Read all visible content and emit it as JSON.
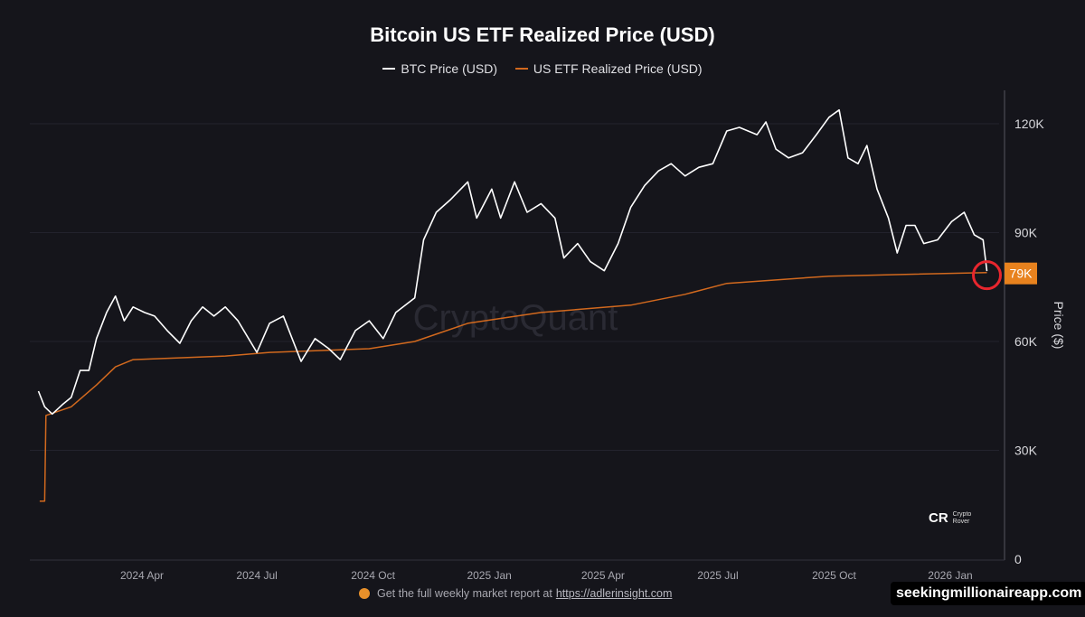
{
  "chart_data": {
    "type": "line",
    "title": "Bitcoin US ETF Realized Price (USD)",
    "ylabel": "Price ($)",
    "ylim": [
      0,
      130000
    ],
    "y_ticks": [
      0,
      30000,
      60000,
      90000,
      120000
    ],
    "y_tick_labels": [
      "0",
      "30K",
      "60K",
      "90K",
      "120K"
    ],
    "x_ticks": [
      "2024-04-01",
      "2024-07-01",
      "2024-10-01",
      "2025-01-01",
      "2025-04-01",
      "2025-07-01",
      "2025-10-01",
      "2026-01-01"
    ],
    "x_tick_labels": [
      "2024 Apr",
      "2024 Jul",
      "2024 Oct",
      "2025 Jan",
      "2025 Apr",
      "2025 Jul",
      "2025 Oct",
      "2026 Jan"
    ],
    "grid": true,
    "legend": "top-center",
    "y_axis_side": "right",
    "watermark": "CryptoQuant",
    "annotation": {
      "label": "79K",
      "value": 79000,
      "date": "2026-01-30",
      "badge_color": "#e8821e",
      "circle_color": "#e8262e"
    },
    "series": [
      {
        "name": "BTC Price (USD)",
        "color": "#ffffff",
        "points": [
          [
            "2024-01-10",
            46300
          ],
          [
            "2024-01-15",
            42000
          ],
          [
            "2024-01-21",
            40000
          ],
          [
            "2024-01-29",
            42600
          ],
          [
            "2024-02-05",
            44600
          ],
          [
            "2024-02-12",
            52000
          ],
          [
            "2024-02-19",
            52000
          ],
          [
            "2024-02-25",
            60800
          ],
          [
            "2024-03-04",
            68000
          ],
          [
            "2024-03-11",
            72500
          ],
          [
            "2024-03-18",
            65700
          ],
          [
            "2024-03-25",
            69500
          ],
          [
            "2024-04-03",
            68000
          ],
          [
            "2024-04-11",
            67000
          ],
          [
            "2024-04-21",
            63000
          ],
          [
            "2024-05-01",
            59500
          ],
          [
            "2024-05-10",
            65700
          ],
          [
            "2024-05-19",
            69500
          ],
          [
            "2024-05-28",
            67000
          ],
          [
            "2024-06-06",
            69500
          ],
          [
            "2024-06-16",
            65700
          ],
          [
            "2024-07-01",
            57000
          ],
          [
            "2024-07-11",
            65000
          ],
          [
            "2024-07-22",
            67000
          ],
          [
            "2024-08-05",
            54500
          ],
          [
            "2024-08-16",
            60800
          ],
          [
            "2024-08-27",
            58000
          ],
          [
            "2024-09-05",
            55000
          ],
          [
            "2024-09-17",
            63000
          ],
          [
            "2024-09-28",
            65700
          ],
          [
            "2024-10-09",
            60800
          ],
          [
            "2024-10-19",
            68000
          ],
          [
            "2024-11-03",
            72000
          ],
          [
            "2024-11-10",
            88000
          ],
          [
            "2024-11-20",
            95600
          ],
          [
            "2024-12-01",
            99000
          ],
          [
            "2024-12-15",
            104000
          ],
          [
            "2024-12-22",
            94000
          ],
          [
            "2025-01-03",
            102000
          ],
          [
            "2025-01-10",
            94000
          ],
          [
            "2025-01-21",
            104000
          ],
          [
            "2025-01-31",
            95600
          ],
          [
            "2025-02-11",
            98000
          ],
          [
            "2025-02-22",
            94000
          ],
          [
            "2025-03-01",
            83000
          ],
          [
            "2025-03-12",
            87000
          ],
          [
            "2025-03-22",
            82000
          ],
          [
            "2025-04-02",
            79500
          ],
          [
            "2025-04-13",
            87000
          ],
          [
            "2025-04-23",
            97000
          ],
          [
            "2025-05-04",
            103000
          ],
          [
            "2025-05-15",
            107000
          ],
          [
            "2025-05-25",
            109000
          ],
          [
            "2025-06-05",
            105600
          ],
          [
            "2025-06-16",
            108000
          ],
          [
            "2025-06-27",
            109000
          ],
          [
            "2025-07-08",
            118000
          ],
          [
            "2025-07-18",
            119000
          ],
          [
            "2025-08-01",
            117000
          ],
          [
            "2025-08-08",
            120500
          ],
          [
            "2025-08-16",
            113000
          ],
          [
            "2025-08-26",
            110600
          ],
          [
            "2025-09-06",
            112000
          ],
          [
            "2025-09-17",
            117000
          ],
          [
            "2025-09-27",
            121800
          ],
          [
            "2025-10-05",
            123800
          ],
          [
            "2025-10-12",
            110600
          ],
          [
            "2025-10-20",
            109000
          ],
          [
            "2025-10-27",
            114000
          ],
          [
            "2025-11-04",
            102000
          ],
          [
            "2025-11-13",
            94000
          ],
          [
            "2025-11-20",
            84400
          ],
          [
            "2025-11-27",
            92000
          ],
          [
            "2025-12-04",
            92000
          ],
          [
            "2025-12-11",
            87000
          ],
          [
            "2025-12-22",
            88000
          ],
          [
            "2026-01-02",
            93000
          ],
          [
            "2026-01-12",
            95600
          ],
          [
            "2026-01-20",
            89400
          ],
          [
            "2026-01-27",
            88000
          ],
          [
            "2026-01-30",
            79400
          ]
        ]
      },
      {
        "name": "US ETF Realized Price (USD)",
        "color": "#d2691e",
        "points": [
          [
            "2024-01-11",
            16000
          ],
          [
            "2024-01-15",
            16000
          ],
          [
            "2024-01-16",
            39600
          ],
          [
            "2024-02-05",
            42000
          ],
          [
            "2024-02-25",
            48000
          ],
          [
            "2024-03-11",
            53000
          ],
          [
            "2024-03-25",
            55000
          ],
          [
            "2024-06-06",
            56000
          ],
          [
            "2024-07-11",
            57000
          ],
          [
            "2024-09-28",
            58000
          ],
          [
            "2024-11-03",
            60000
          ],
          [
            "2024-12-15",
            65000
          ],
          [
            "2025-02-11",
            68000
          ],
          [
            "2025-04-23",
            70000
          ],
          [
            "2025-06-05",
            73000
          ],
          [
            "2025-07-08",
            76000
          ],
          [
            "2025-09-27",
            78000
          ],
          [
            "2026-01-30",
            79000
          ]
        ]
      }
    ]
  },
  "footer": {
    "text": "Get the full weekly market report at",
    "link": "https://adlerinsight.com"
  },
  "site_watermark": "seekingmillionaireapp.com",
  "logo": {
    "mark": "CR",
    "line1": "Crypto",
    "line2": "Rover"
  }
}
